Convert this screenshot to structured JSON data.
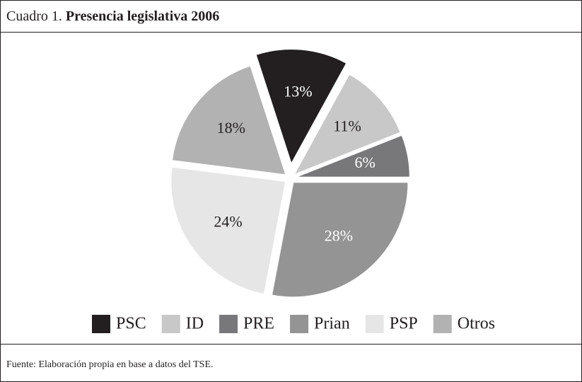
{
  "chart_data": {
    "type": "pie",
    "label": "Cuadro 1.",
    "title": "Presencia legislativa 2006",
    "categories": [
      "PSC",
      "ID",
      "PRE",
      "Prian",
      "PSP",
      "Otros"
    ],
    "values": [
      13,
      11,
      6,
      28,
      24,
      18
    ],
    "value_labels": [
      "13%",
      "11%",
      "6%",
      "28%",
      "24%",
      "18%"
    ],
    "colors": [
      "#231f20",
      "#c8c8c9",
      "#78787a",
      "#949495",
      "#e6e6e7",
      "#b2b2b3"
    ],
    "legend": "bottom",
    "source": "Fuente: Elaboración propia en base a datos del TSE."
  }
}
